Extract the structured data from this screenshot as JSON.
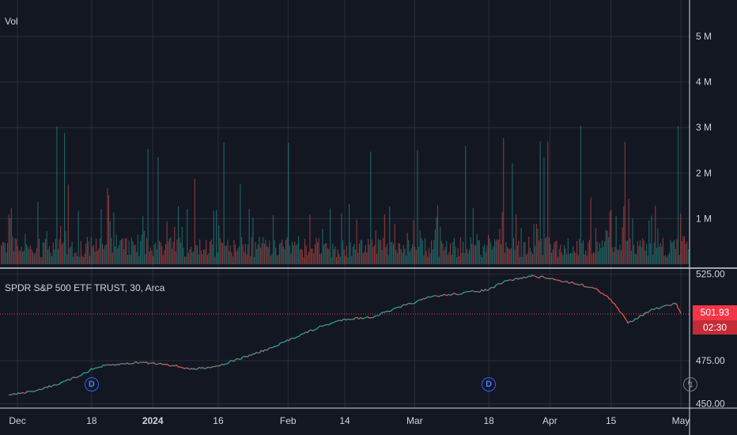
{
  "chart_data": {
    "type": "bar",
    "title": "SPDR S&P 500 ETF TRUST, 30, Arca",
    "volume_pane": {
      "label": "Vol",
      "y_ticks": [
        "5 M",
        "4 M",
        "3 M",
        "2 M",
        "1 M"
      ],
      "y_tick_values": [
        5000000,
        4000000,
        3000000,
        2000000,
        1000000
      ],
      "ylim": [
        0,
        5800000
      ]
    },
    "price_pane": {
      "type": "line",
      "y_ticks": [
        "525.00",
        "475.00",
        "450.00"
      ],
      "y_tick_values": [
        525,
        475,
        450
      ],
      "ylim": [
        448,
        528
      ],
      "last_price": "501.93",
      "last_price_value": 501.93,
      "countdown": "02:30",
      "series": [
        {
          "x": [
            "2023-11-29",
            "2023-12-04",
            "2023-12-11",
            "2023-12-15",
            "2023-12-18",
            "2023-12-21",
            "2023-12-29",
            "2024-01-04",
            "2024-01-10",
            "2024-01-16",
            "2024-01-22",
            "2024-01-29",
            "2024-02-02",
            "2024-02-09",
            "2024-02-14",
            "2024-02-20",
            "2024-02-28",
            "2024-03-05",
            "2024-03-12",
            "2024-03-18",
            "2024-03-22",
            "2024-03-28",
            "2024-04-02",
            "2024-04-08",
            "2024-04-12",
            "2024-04-15",
            "2024-04-19",
            "2024-04-24",
            "2024-04-30",
            "2024-05-01"
          ],
          "values": [
            455,
            457,
            462,
            466,
            470,
            472,
            474,
            473,
            470,
            472,
            477,
            483,
            488,
            495,
            499,
            500,
            507,
            512,
            514,
            516,
            521,
            524,
            522,
            519,
            516,
            510,
            497,
            504,
            508,
            501.93
          ]
        }
      ]
    },
    "x_ticks": [
      {
        "label": "Dec",
        "date": "2023-12-01",
        "bold": false
      },
      {
        "label": "18",
        "date": "2023-12-18",
        "bold": false
      },
      {
        "label": "2024",
        "date": "2024-01-01",
        "bold": true
      },
      {
        "label": "16",
        "date": "2024-01-16",
        "bold": false
      },
      {
        "label": "Feb",
        "date": "2024-02-01",
        "bold": false
      },
      {
        "label": "14",
        "date": "2024-02-14",
        "bold": false
      },
      {
        "label": "Mar",
        "date": "2024-03-01",
        "bold": false
      },
      {
        "label": "18",
        "date": "2024-03-18",
        "bold": false
      },
      {
        "label": "Apr",
        "date": "2024-04-01",
        "bold": false
      },
      {
        "label": "15",
        "date": "2024-04-15",
        "bold": false
      },
      {
        "label": "May",
        "date": "2024-05-01",
        "bold": false
      }
    ],
    "markers": [
      {
        "label": "D",
        "date": "2023-12-18",
        "kind": "dividend-icon"
      },
      {
        "label": "D",
        "date": "2024-03-18",
        "kind": "dividend-icon"
      }
    ],
    "colors": {
      "background": "#131722",
      "up": "#26a69a",
      "down": "#ef5350",
      "grid": "#2a2e39",
      "price_tag": "#f23645"
    }
  }
}
